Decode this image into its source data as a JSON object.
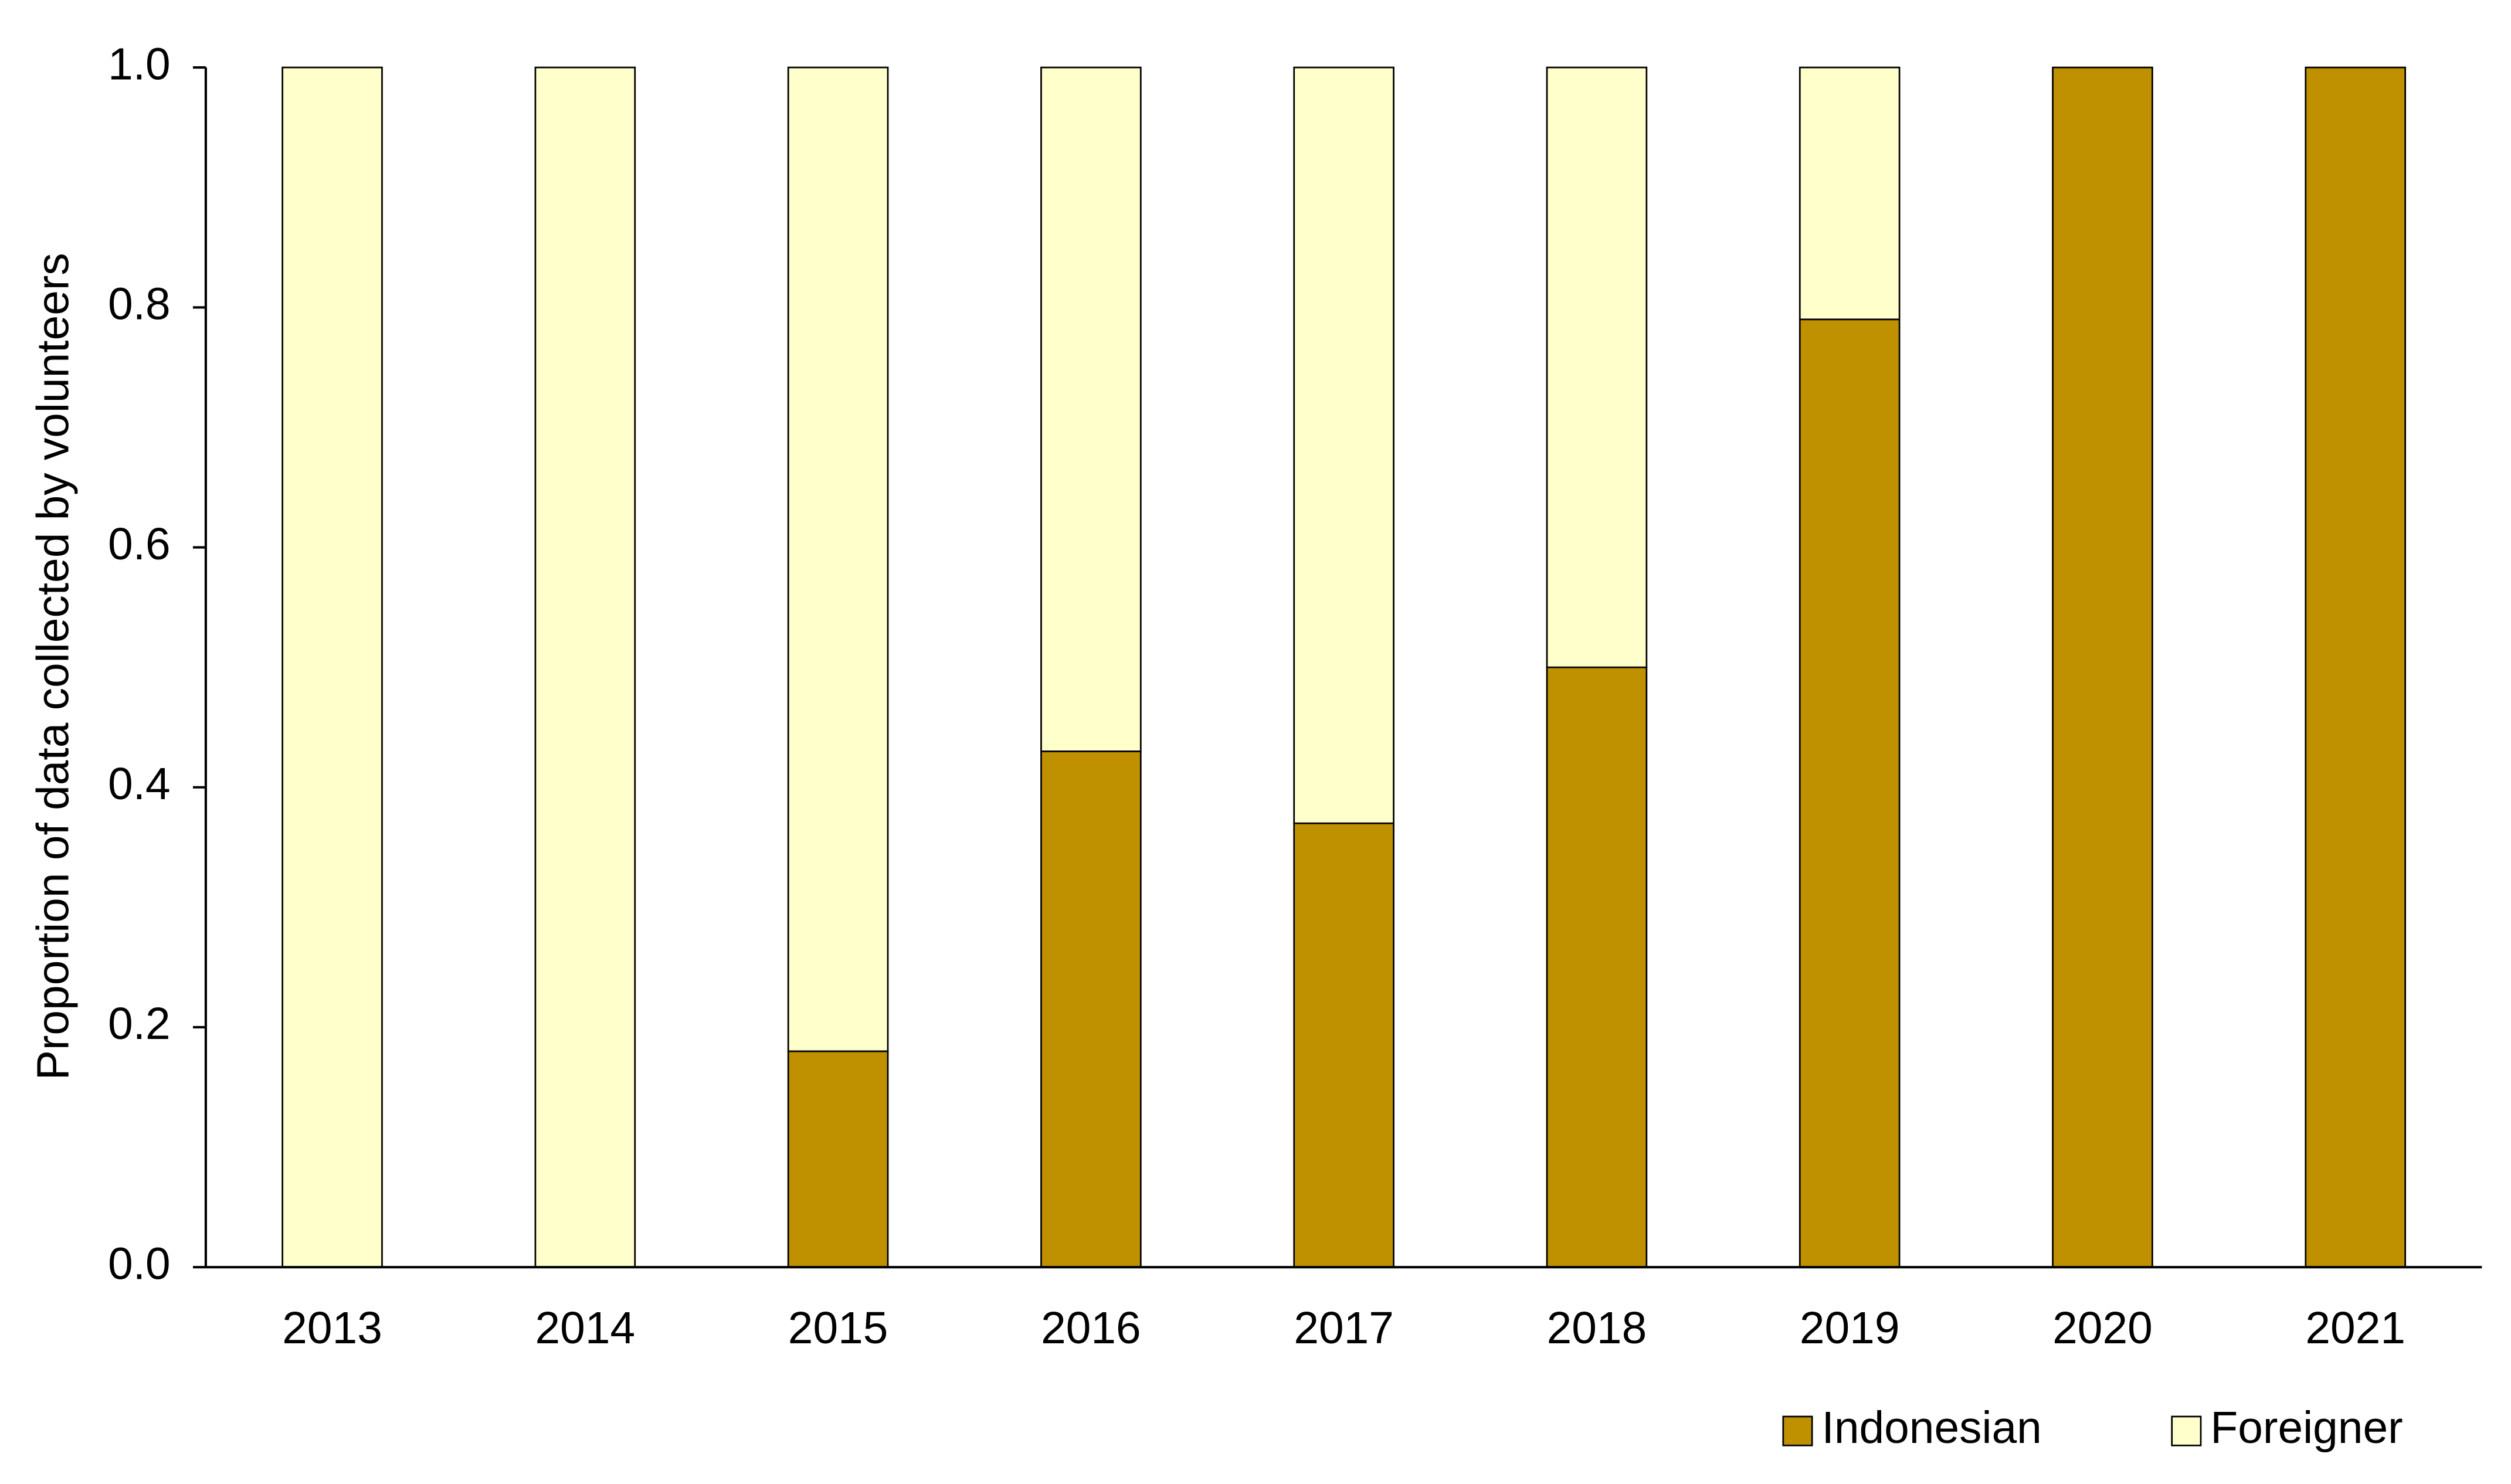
{
  "chart_data": {
    "type": "stacked-bar",
    "y_label": "Proportion of data collected by volunteers",
    "categories": [
      "2013",
      "2014",
      "2015",
      "2016",
      "2017",
      "2018",
      "2019",
      "2020",
      "2021"
    ],
    "series": [
      {
        "name": "Indonesian",
        "color": "#bf9000",
        "values": [
          0,
          0,
          0.18,
          0.43,
          0.37,
          0.5,
          0.79,
          1,
          1
        ]
      },
      {
        "name": "Foreigner",
        "color": "#ffffcc",
        "values": [
          1,
          1,
          0.82,
          0.57,
          0.63,
          0.5,
          0.21,
          0,
          0
        ]
      }
    ],
    "ylim": [
      0,
      1
    ],
    "yticks": [
      {
        "value": 0,
        "label": "0.0"
      },
      0.2,
      0.4,
      0.6,
      0.8,
      {
        "value": 1,
        "label": "1.0"
      }
    ],
    "grid": false,
    "legend": "bottom-right"
  }
}
